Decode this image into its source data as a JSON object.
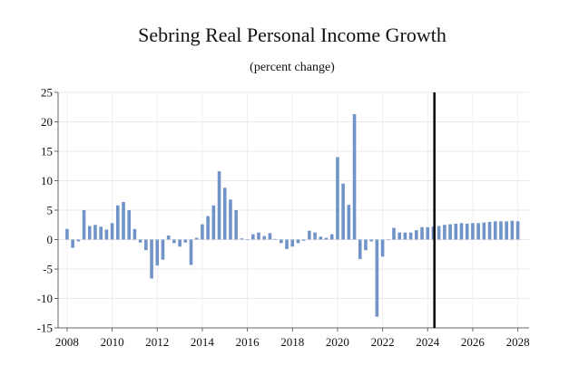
{
  "chart_data": {
    "type": "bar",
    "title": "Sebring Real Personal Income Growth",
    "subtitle": "(percent change)",
    "xlabel": "",
    "ylabel": "",
    "ylim": [
      -15,
      25
    ],
    "xlim": [
      2007.6,
      2028.5
    ],
    "yticks": [
      25,
      20,
      15,
      10,
      5,
      0,
      -5,
      -10,
      -15
    ],
    "xticks": [
      2008,
      2010,
      2012,
      2014,
      2016,
      2018,
      2020,
      2022,
      2024,
      2026,
      2028
    ],
    "grid": true,
    "legend": "none",
    "bar_color": "#7094c8",
    "marker_line": {
      "x": 2024.3,
      "color": "#000000"
    },
    "series": [
      {
        "x": [
          2008.0,
          2008.25,
          2008.5,
          2008.75,
          2009.0,
          2009.25,
          2009.5,
          2009.75,
          2010.0,
          2010.25,
          2010.5,
          2010.75,
          2011.0,
          2011.25,
          2011.5,
          2011.75,
          2012.0,
          2012.25,
          2012.5,
          2012.75,
          2013.0,
          2013.25,
          2013.5,
          2013.75,
          2014.0,
          2014.25,
          2014.5,
          2014.75,
          2015.0,
          2015.25,
          2015.5,
          2015.75,
          2016.0,
          2016.25,
          2016.5,
          2016.75,
          2017.0,
          2017.25,
          2017.5,
          2017.75,
          2018.0,
          2018.25,
          2018.5,
          2018.75,
          2019.0,
          2019.25,
          2019.5,
          2019.75,
          2020.0,
          2020.25,
          2020.5,
          2020.75,
          2021.0,
          2021.25,
          2021.5,
          2021.75,
          2022.0,
          2022.25,
          2022.5,
          2022.75,
          2023.0,
          2023.25,
          2023.5,
          2023.75,
          2024.0,
          2024.25,
          2024.5,
          2024.75,
          2025.0,
          2025.25,
          2025.5,
          2025.75,
          2026.0,
          2026.25,
          2026.5,
          2026.75,
          2027.0,
          2027.25,
          2027.5,
          2027.75,
          2028.0
        ],
        "values": [
          1.8,
          -1.4,
          -0.3,
          5.0,
          2.3,
          2.5,
          2.2,
          1.7,
          2.8,
          5.8,
          6.4,
          5.0,
          1.8,
          -0.5,
          -1.8,
          -6.6,
          -4.4,
          -3.4,
          0.7,
          -0.6,
          -1.2,
          -0.5,
          -4.3,
          0.3,
          2.6,
          4.0,
          5.8,
          11.6,
          8.8,
          6.8,
          5.0,
          0.2,
          0.0,
          0.9,
          1.2,
          0.6,
          1.1,
          0.1,
          -0.6,
          -1.6,
          -1.2,
          -0.6,
          -0.2,
          1.5,
          1.2,
          0.5,
          0.3,
          0.9,
          14.0,
          9.5,
          5.9,
          21.3,
          -3.3,
          -1.8,
          -0.3,
          -13.1,
          -2.9,
          -0.1,
          2.0,
          1.2,
          1.2,
          1.2,
          1.6,
          2.1,
          2.1,
          2.2,
          2.3,
          2.5,
          2.6,
          2.7,
          2.8,
          2.7,
          2.8,
          2.8,
          2.9,
          3.0,
          3.1,
          3.1,
          3.1,
          3.2,
          3.1
        ]
      }
    ]
  }
}
